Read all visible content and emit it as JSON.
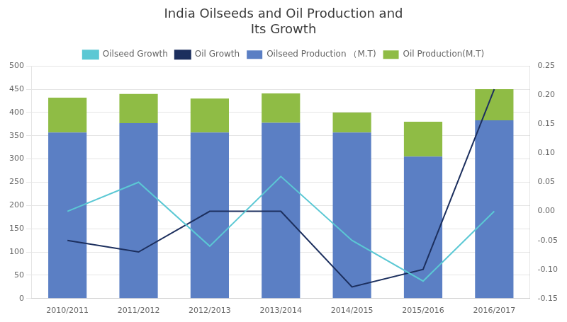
{
  "chart_data": {
    "type": "bar",
    "title": "India Oilseeds and Oil Production and\nIts Growth",
    "categories": [
      "2010/2011",
      "2011/2012",
      "2012/2013",
      "2013/2014",
      "2014/2015",
      "2015/2016",
      "2016/2017"
    ],
    "series": [
      {
        "name": "Oilseed Production （M.T)",
        "type": "bar",
        "color": "#5B7FC4",
        "values": [
          357,
          377,
          357,
          378,
          357,
          305,
          383
        ]
      },
      {
        "name": "Oil Production(M.T)",
        "type": "bar",
        "color": "#8FBC45",
        "values": [
          75,
          63,
          73,
          63,
          43,
          75,
          67
        ]
      },
      {
        "name": "Oilseed Growth",
        "type": "line",
        "axis": "y2",
        "color": "#5BC8D4",
        "values": [
          0.0,
          0.05,
          -0.06,
          0.06,
          -0.05,
          -0.12,
          0.0
        ]
      },
      {
        "name": "Oil Growth",
        "type": "line",
        "axis": "y2",
        "color": "#1C2F5E",
        "values": [
          -0.05,
          -0.07,
          0.0,
          0.0,
          -0.13,
          -0.1,
          0.21
        ]
      }
    ],
    "stacked": true,
    "ylim": [
      0,
      500
    ],
    "yticks": [
      0,
      50,
      100,
      150,
      200,
      250,
      300,
      350,
      400,
      450,
      500
    ],
    "y2lim": [
      -0.15,
      0.25
    ],
    "y2ticks": [
      {
        "value": -0.15,
        "label": "-0.15"
      },
      {
        "value": -0.1,
        "label": "-0.10"
      },
      {
        "value": -0.05,
        "label": "-0.05"
      },
      {
        "value": 0.0,
        "label": "0.00"
      },
      {
        "value": 0.05,
        "label": "0.05"
      },
      {
        "value": 0.1,
        "label": "0.10"
      },
      {
        "value": 0.15,
        "label": "0.15"
      },
      {
        "value": 0.2,
        "label": "0.20"
      },
      {
        "value": 0.25,
        "label": "0.25"
      }
    ],
    "grid": true,
    "legend": "top"
  }
}
